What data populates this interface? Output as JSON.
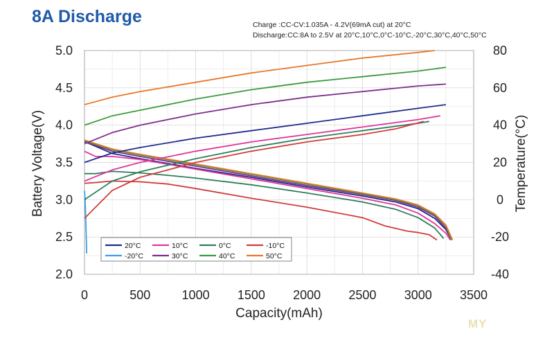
{
  "header": {
    "title": "8A Discharge",
    "charge_note": "Charge :CC-CV:1.035A - 4.2V(69mA cut) at 20°C",
    "discharge_note": "Discharge:CC:8A to 2.5V at 20°C,10°C,0°C-10°C,-20°C,30°C,40°C,50°C"
  },
  "watermark": "MY",
  "chart_data": {
    "type": "line",
    "xlabel": "Capacity(mAh)",
    "ylabel": "Battery Voltage(V)",
    "y2label": "Temperature(°C)",
    "xlim": [
      0,
      3500
    ],
    "ylim": [
      2.0,
      5.0
    ],
    "y2lim": [
      -40,
      80
    ],
    "x_ticks": [
      "0",
      "500",
      "1000",
      "1500",
      "2000",
      "2500",
      "3000",
      "3500"
    ],
    "y_ticks": [
      "2.0",
      "2.5",
      "3.0",
      "3.5",
      "4.0",
      "4.5",
      "5.0"
    ],
    "y2_ticks": [
      "-40",
      "-20",
      "0",
      "20",
      "40",
      "60",
      "80"
    ],
    "grid": true,
    "legend_position": "bottom-left",
    "colors": {
      "20°C": "#1f2a8c",
      "10°C": "#e0359b",
      "0°C": "#2e7d5b",
      "-10°C": "#d13b3b",
      "-20°C": "#3aa0e0",
      "30°C": "#7d2d8c",
      "40°C": "#3a9a3a",
      "50°C": "#e8772a"
    },
    "series": [
      {
        "name": "20°C",
        "axis": "voltage",
        "x": [
          0,
          250,
          500,
          1000,
          1500,
          2000,
          2500,
          2800,
          3000,
          3150,
          3250,
          3300
        ],
        "y": [
          3.78,
          3.62,
          3.55,
          3.42,
          3.3,
          3.17,
          3.05,
          2.97,
          2.88,
          2.75,
          2.6,
          2.46
        ]
      },
      {
        "name": "10°C",
        "axis": "voltage",
        "x": [
          0,
          100,
          250,
          500,
          1000,
          1500,
          2000,
          2500,
          2800,
          3000,
          3150,
          3250,
          3290
        ],
        "y": [
          3.65,
          3.58,
          3.58,
          3.54,
          3.41,
          3.28,
          3.15,
          3.02,
          2.93,
          2.82,
          2.68,
          2.55,
          2.46
        ]
      },
      {
        "name": "0°C",
        "axis": "voltage",
        "x": [
          0,
          100,
          250,
          500,
          800,
          1000,
          1500,
          2000,
          2500,
          2800,
          3000,
          3150,
          3230
        ],
        "y": [
          3.35,
          3.35,
          3.38,
          3.36,
          3.32,
          3.29,
          3.2,
          3.09,
          2.97,
          2.87,
          2.76,
          2.62,
          2.48
        ]
      },
      {
        "name": "-10°C",
        "axis": "voltage",
        "x": [
          0,
          100,
          250,
          500,
          750,
          1000,
          1500,
          2000,
          2500,
          2700,
          2900,
          3000,
          3100,
          3170
        ],
        "y": [
          3.22,
          3.23,
          3.25,
          3.24,
          3.21,
          3.15,
          3.02,
          2.9,
          2.76,
          2.65,
          2.58,
          2.56,
          2.53,
          2.46
        ]
      },
      {
        "name": "-20°C",
        "axis": "voltage",
        "x": [
          0,
          5,
          10,
          15,
          20
        ],
        "y": [
          3.12,
          3.02,
          2.8,
          2.55,
          2.28
        ]
      },
      {
        "name": "30°C",
        "axis": "voltage",
        "x": [
          0,
          250,
          500,
          1000,
          1500,
          2000,
          2500,
          2800,
          3000,
          3150,
          3250,
          3300
        ],
        "y": [
          3.78,
          3.65,
          3.58,
          3.45,
          3.32,
          3.19,
          3.07,
          2.99,
          2.9,
          2.78,
          2.62,
          2.46
        ]
      },
      {
        "name": "40°C",
        "axis": "voltage",
        "x": [
          0,
          250,
          500,
          1000,
          1500,
          2000,
          2500,
          2800,
          3000,
          3150,
          3250,
          3300
        ],
        "y": [
          3.79,
          3.67,
          3.6,
          3.47,
          3.34,
          3.21,
          3.08,
          3.0,
          2.92,
          2.8,
          2.65,
          2.46
        ]
      },
      {
        "name": "50°C",
        "axis": "voltage",
        "x": [
          0,
          250,
          500,
          1000,
          1500,
          2000,
          2500,
          2800,
          3000,
          3150,
          3250,
          3310
        ],
        "y": [
          3.8,
          3.68,
          3.61,
          3.48,
          3.35,
          3.22,
          3.09,
          3.01,
          2.93,
          2.81,
          2.66,
          2.46
        ]
      },
      {
        "name": "20°C",
        "axis": "temperature",
        "x": [
          0,
          250,
          500,
          1000,
          1500,
          2000,
          2500,
          3000,
          3250
        ],
        "y": [
          20,
          25,
          28,
          33,
          37,
          41,
          45,
          49,
          51
        ]
      },
      {
        "name": "10°C",
        "axis": "temperature",
        "x": [
          0,
          250,
          500,
          1000,
          1500,
          2000,
          2500,
          3000,
          3200
        ],
        "y": [
          10,
          16,
          20,
          26,
          31,
          35,
          39,
          43,
          45
        ]
      },
      {
        "name": "0°C",
        "axis": "temperature",
        "x": [
          0,
          250,
          500,
          1000,
          1500,
          2000,
          2500,
          3000,
          3100
        ],
        "y": [
          0,
          10,
          15,
          22,
          28,
          33,
          37,
          41,
          42
        ]
      },
      {
        "name": "-10°C",
        "axis": "temperature",
        "x": [
          0,
          250,
          500,
          1000,
          1500,
          2000,
          2500,
          2800,
          3050
        ],
        "y": [
          -10,
          5,
          12,
          20,
          26,
          31,
          35,
          38,
          42
        ]
      },
      {
        "name": "30°C",
        "axis": "temperature",
        "x": [
          0,
          250,
          500,
          1000,
          1500,
          2000,
          2500,
          3000,
          3250
        ],
        "y": [
          30,
          36,
          40,
          46,
          51,
          55,
          58,
          61,
          62
        ]
      },
      {
        "name": "40°C",
        "axis": "temperature",
        "x": [
          0,
          250,
          500,
          1000,
          1500,
          2000,
          2500,
          3000,
          3250
        ],
        "y": [
          40,
          45,
          48,
          54,
          59,
          63,
          66,
          69,
          71
        ]
      },
      {
        "name": "50°C",
        "axis": "temperature",
        "x": [
          0,
          250,
          500,
          1000,
          1500,
          2000,
          2500,
          3000,
          3150
        ],
        "y": [
          51,
          55,
          58,
          63,
          68,
          72,
          76,
          79,
          80
        ]
      }
    ],
    "legend": [
      {
        "label": "20°C",
        "color_key": "20°C"
      },
      {
        "label": "10°C",
        "color_key": "10°C"
      },
      {
        "label": "0°C",
        "color_key": "0°C"
      },
      {
        "label": "-10°C",
        "color_key": "-10°C"
      },
      {
        "label": "-20°C",
        "color_key": "-20°C"
      },
      {
        "label": "30°C",
        "color_key": "30°C"
      },
      {
        "label": "40°C",
        "color_key": "40°C"
      },
      {
        "label": "50°C",
        "color_key": "50°C"
      }
    ]
  }
}
